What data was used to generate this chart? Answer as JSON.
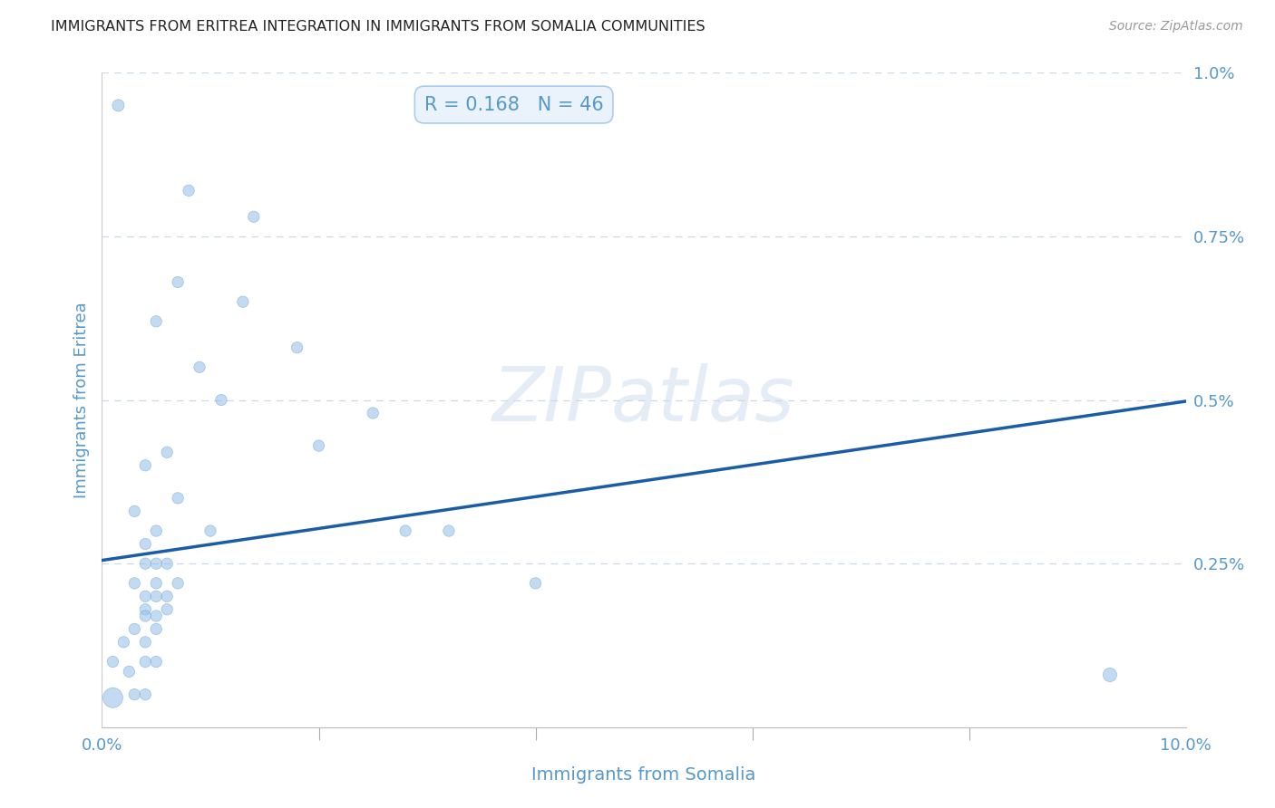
{
  "title": "IMMIGRANTS FROM ERITREA INTEGRATION IN IMMIGRANTS FROM SOMALIA COMMUNITIES",
  "source": "Source: ZipAtlas.com",
  "xlabel": "Immigrants from Somalia",
  "ylabel": "Immigrants from Eritrea",
  "R": 0.168,
  "N": 46,
  "xlim": [
    0.0,
    0.1
  ],
  "ylim": [
    0.0,
    0.01
  ],
  "ytick_positions": [
    0.0025,
    0.005,
    0.0075,
    0.01
  ],
  "ytick_labels": [
    "0.25%",
    "0.5%",
    "0.75%",
    "1.0%"
  ],
  "xtick_positions": [
    0.0,
    0.1
  ],
  "xtick_labels": [
    "0.0%",
    "10.0%"
  ],
  "scatter_color": "#92bfe8",
  "scatter_edge_color": "#6699cc",
  "scatter_alpha": 0.55,
  "line_color": "#1a5da6",
  "line_width": 2.5,
  "background_color": "#ffffff",
  "grid_color": "#c8d8e8",
  "title_color": "#222222",
  "axis_label_color": "#5599cc",
  "tick_label_color": "#5599cc",
  "annotation_bg": "#eaf3fc",
  "annotation_border": "#aaccee",
  "watermark_color": "#c5d8ed",
  "source_color": "#999999",
  "line_x": [
    0.0,
    0.1
  ],
  "line_y": [
    0.00255,
    0.00498
  ],
  "points": [
    [
      0.0015,
      0.0095,
      90
    ],
    [
      0.008,
      0.0082,
      80
    ],
    [
      0.014,
      0.0078,
      80
    ],
    [
      0.007,
      0.0068,
      80
    ],
    [
      0.013,
      0.0065,
      80
    ],
    [
      0.005,
      0.0062,
      80
    ],
    [
      0.018,
      0.0058,
      80
    ],
    [
      0.009,
      0.0055,
      80
    ],
    [
      0.011,
      0.005,
      80
    ],
    [
      0.025,
      0.0048,
      80
    ],
    [
      0.02,
      0.0043,
      80
    ],
    [
      0.006,
      0.0042,
      80
    ],
    [
      0.004,
      0.004,
      80
    ],
    [
      0.007,
      0.0035,
      80
    ],
    [
      0.003,
      0.0033,
      80
    ],
    [
      0.028,
      0.003,
      80
    ],
    [
      0.032,
      0.003,
      80
    ],
    [
      0.01,
      0.003,
      80
    ],
    [
      0.005,
      0.003,
      80
    ],
    [
      0.004,
      0.0028,
      80
    ],
    [
      0.004,
      0.0025,
      80
    ],
    [
      0.005,
      0.0025,
      80
    ],
    [
      0.006,
      0.0025,
      80
    ],
    [
      0.003,
      0.0022,
      80
    ],
    [
      0.007,
      0.0022,
      80
    ],
    [
      0.005,
      0.0022,
      80
    ],
    [
      0.04,
      0.0022,
      80
    ],
    [
      0.004,
      0.002,
      80
    ],
    [
      0.005,
      0.002,
      80
    ],
    [
      0.006,
      0.002,
      80
    ],
    [
      0.004,
      0.0018,
      80
    ],
    [
      0.006,
      0.0018,
      80
    ],
    [
      0.004,
      0.0017,
      80
    ],
    [
      0.005,
      0.0017,
      80
    ],
    [
      0.003,
      0.0015,
      80
    ],
    [
      0.005,
      0.0015,
      80
    ],
    [
      0.002,
      0.0013,
      80
    ],
    [
      0.004,
      0.0013,
      80
    ],
    [
      0.004,
      0.001,
      80
    ],
    [
      0.005,
      0.001,
      80
    ],
    [
      0.001,
      0.001,
      80
    ],
    [
      0.0025,
      0.00085,
      80
    ],
    [
      0.003,
      0.0005,
      80
    ],
    [
      0.004,
      0.0005,
      80
    ],
    [
      0.001,
      0.00045,
      250
    ],
    [
      0.093,
      0.0008,
      120
    ]
  ]
}
